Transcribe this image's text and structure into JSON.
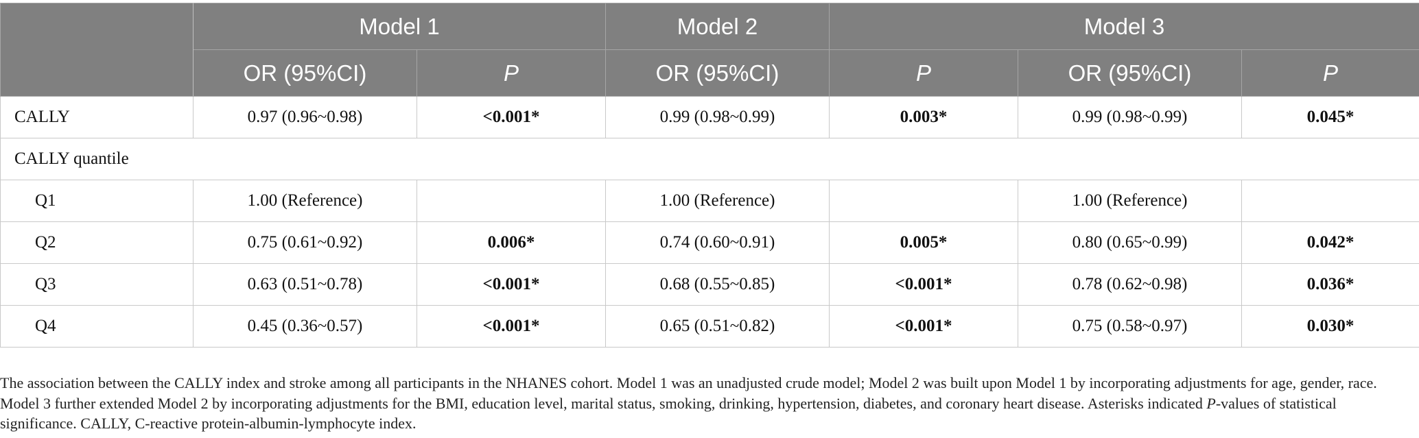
{
  "header": {
    "groups": [
      "Model 1",
      "Model 2",
      "Model 3"
    ],
    "subheaders": [
      "OR (95%CI)",
      "P",
      "OR (95%CI)",
      "P",
      "OR (95%CI)",
      "P"
    ]
  },
  "rows": {
    "cally": {
      "label": "CALLY",
      "m1_or": "0.97 (0.96~0.98)",
      "m1_p": "<0.001*",
      "m2_or": "0.99 (0.98~0.99)",
      "m2_p": "0.003*",
      "m3_or": "0.99 (0.98~0.99)",
      "m3_p": "0.045*"
    },
    "quantile_label": "CALLY quantile",
    "q1": {
      "label": "Q1",
      "m1_or": "1.00 (Reference)",
      "m1_p": "",
      "m2_or": "1.00 (Reference)",
      "m2_p": "",
      "m3_or": "1.00 (Reference)",
      "m3_p": ""
    },
    "q2": {
      "label": "Q2",
      "m1_or": "0.75 (0.61~0.92)",
      "m1_p": "0.006*",
      "m2_or": "0.74 (0.60~0.91)",
      "m2_p": "0.005*",
      "m3_or": "0.80 (0.65~0.99)",
      "m3_p": "0.042*"
    },
    "q3": {
      "label": "Q3",
      "m1_or": "0.63 (0.51~0.78)",
      "m1_p": "<0.001*",
      "m2_or": "0.68 (0.55~0.85)",
      "m2_p": "<0.001*",
      "m3_or": "0.78 (0.62~0.98)",
      "m3_p": "0.036*"
    },
    "q4": {
      "label": "Q4",
      "m1_or": "0.45 (0.36~0.57)",
      "m1_p": "<0.001*",
      "m2_or": "0.65 (0.51~0.82)",
      "m2_p": "<0.001*",
      "m3_or": "0.75 (0.58~0.97)",
      "m3_p": "0.030*"
    }
  },
  "footnote": {
    "part1": "The association between the CALLY index and stroke among all participants in the NHANES cohort. Model 1 was an unadjusted crude model; Model 2 was built upon Model 1 by incorporating adjustments for age, gender, race. Model 3 further extended Model 2 by incorporating adjustments for the BMI, education level, marital status, smoking, drinking, hypertension, diabetes, and coronary heart disease. Asterisks indicated ",
    "p_italic": "P",
    "part2": "-values of statistical significance. CALLY, C-reactive protein-albumin-lymphocyte index."
  },
  "colors": {
    "header_bg": "#808080",
    "header_text": "#ffffff",
    "border": "#c9c9c9"
  }
}
